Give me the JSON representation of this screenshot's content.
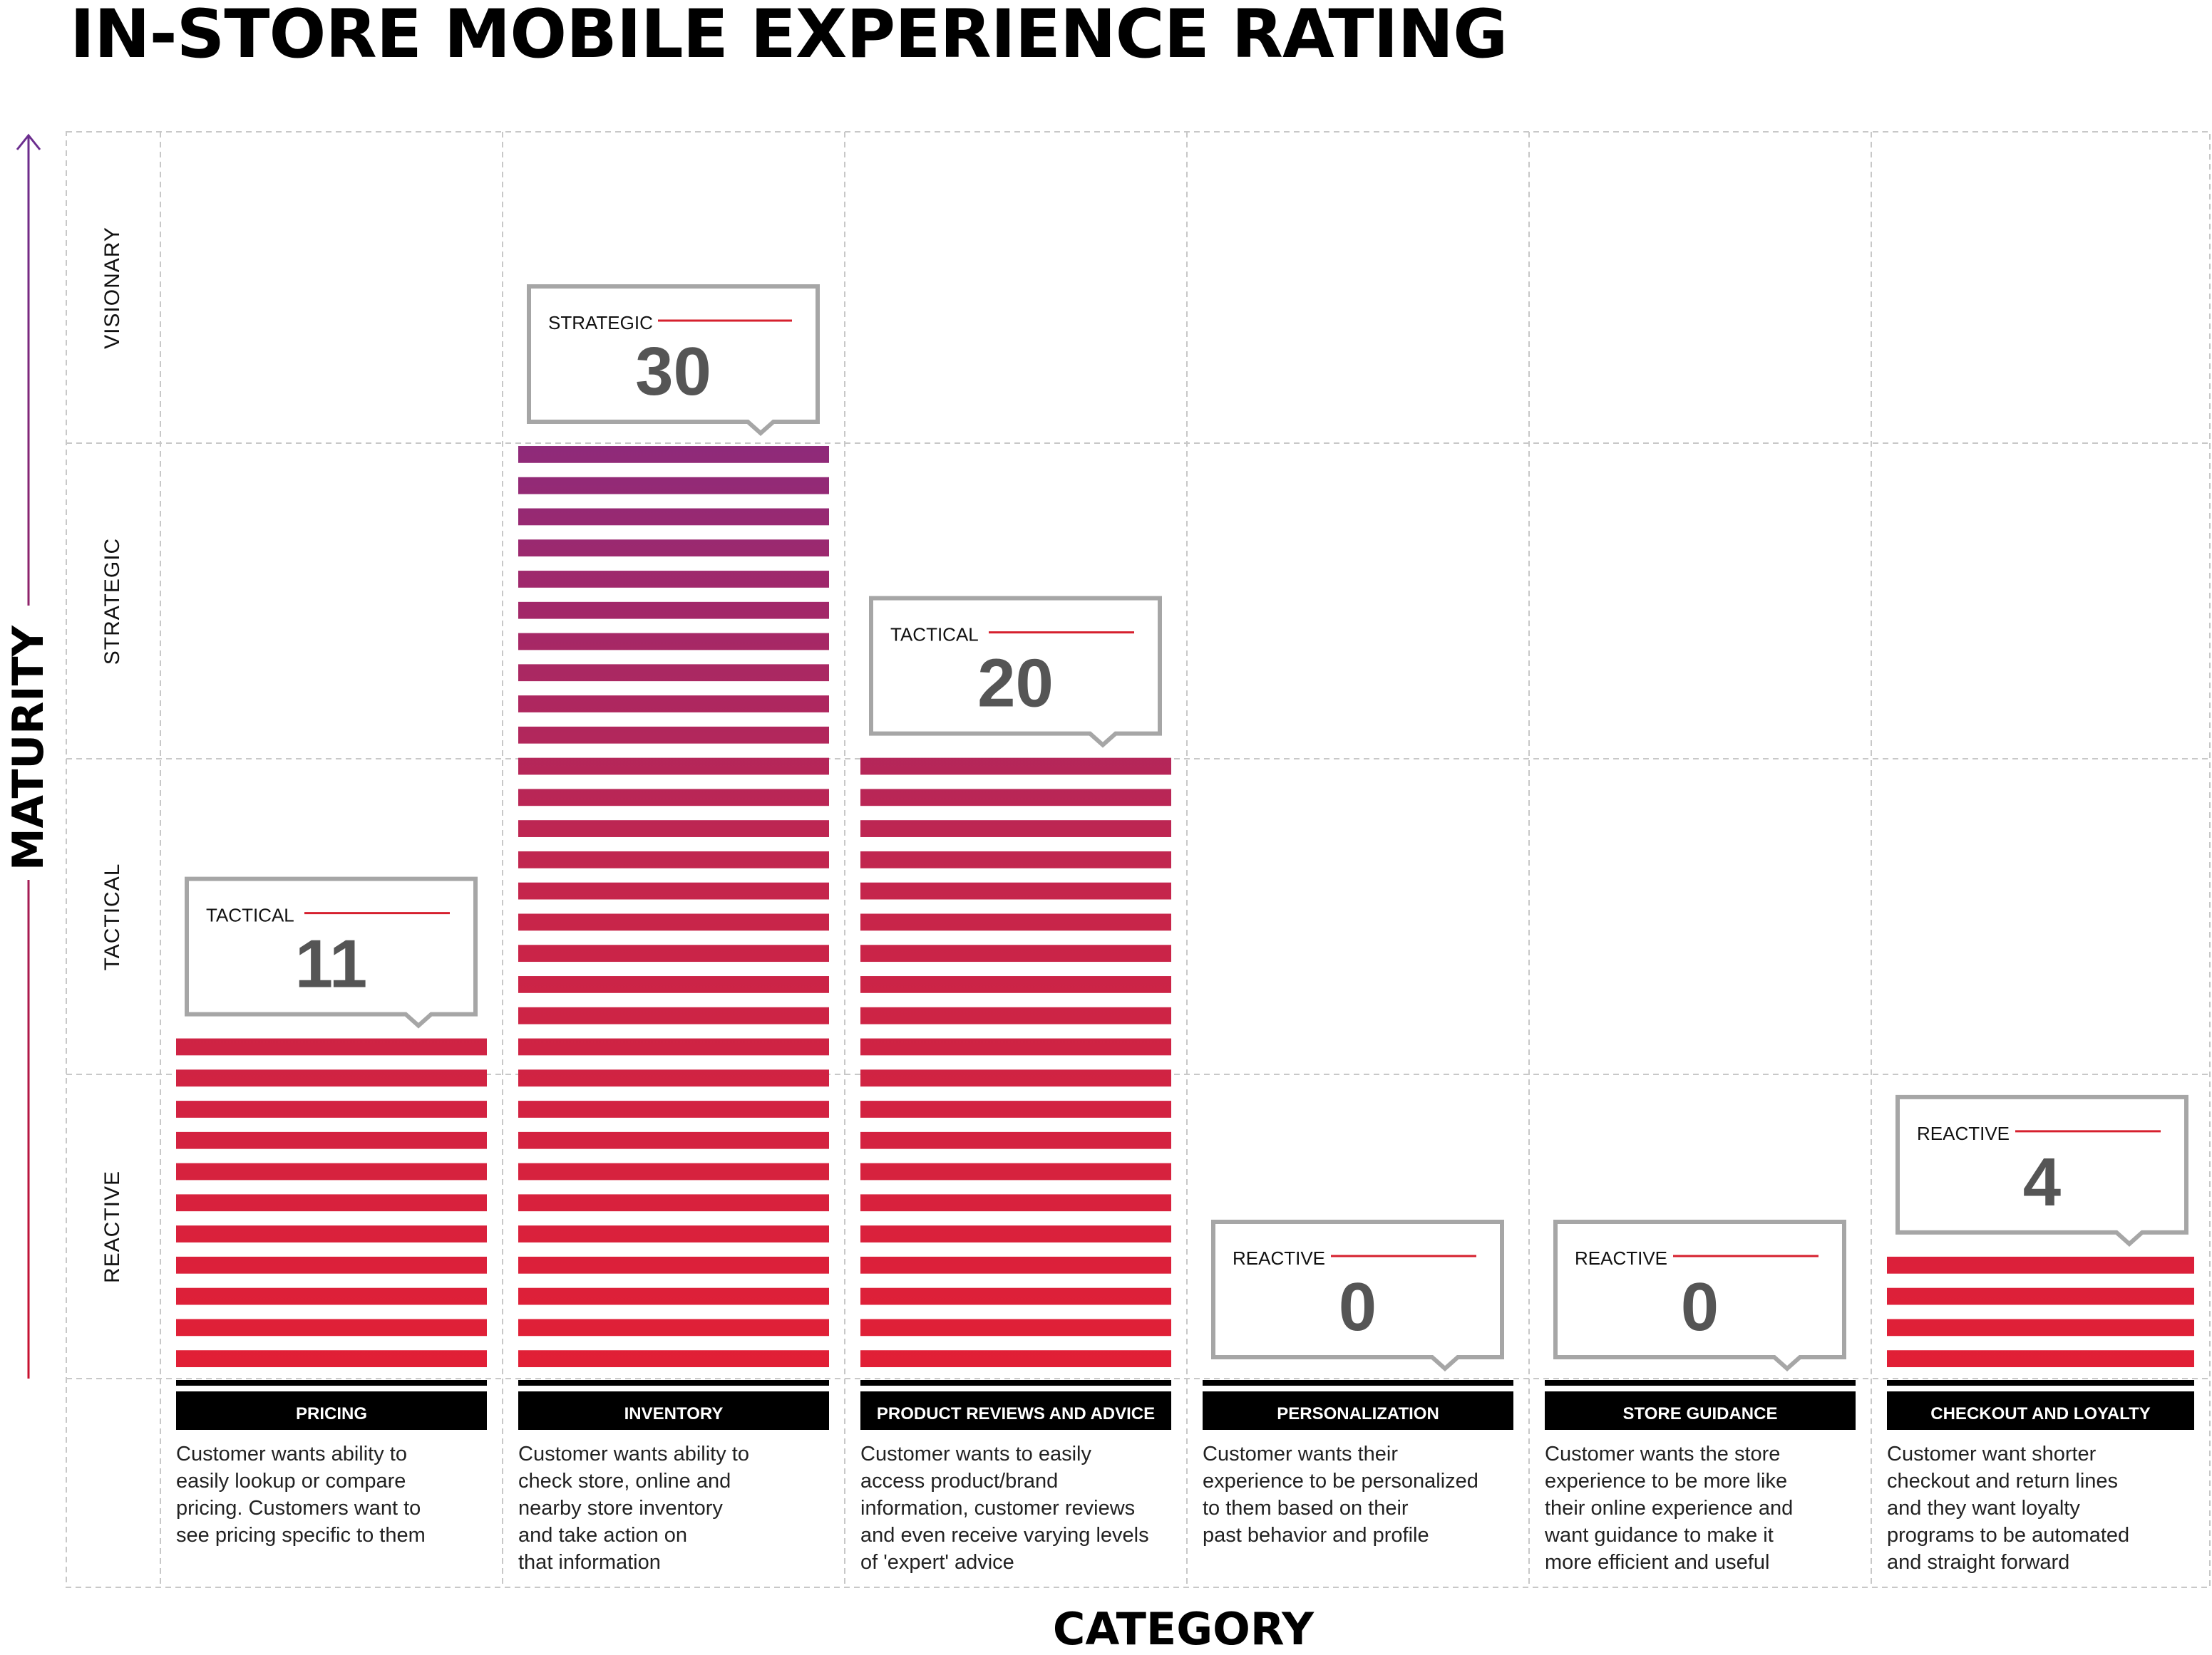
{
  "title": "IN-STORE MOBILE EXPERIENCE RATING",
  "y_axis_label": "MATURITY",
  "x_axis_label": "CATEGORY",
  "levels": [
    "REACTIVE",
    "TACTICAL",
    "STRATEGIC",
    "VISIONARY"
  ],
  "colors": {
    "reactive_red": "#e21f35",
    "strategic_purple": "#8e2a7a",
    "label_bg": "#000000",
    "callout_border": "#a6a6a6",
    "callout_line": "#d6202e",
    "value_text": "#555555",
    "axis_arrow_top": "#6b2d8e",
    "axis_arrow_bottom": "#c8102e"
  },
  "chart_data": {
    "type": "bar",
    "title": "IN-STORE MOBILE EXPERIENCE RATING",
    "xlabel": "CATEGORY",
    "ylabel": "MATURITY",
    "ylim": [
      0,
      40
    ],
    "y_bands": [
      "REACTIVE",
      "TACTICAL",
      "STRATEGIC",
      "VISIONARY"
    ],
    "grid": true,
    "categories": [
      "PRICING",
      "INVENTORY",
      "PRODUCT REVIEWS AND ADVICE",
      "PERSONALIZATION",
      "STORE GUIDANCE",
      "CHECKOUT AND LOYALTY"
    ],
    "values": [
      11,
      30,
      20,
      0,
      0,
      4
    ],
    "ratings": [
      "TACTICAL",
      "STRATEGIC",
      "TACTICAL",
      "REACTIVE",
      "REACTIVE",
      "REACTIVE"
    ],
    "descriptions": [
      "Customer wants ability to\neasily lookup or compare\npricing. Customers want to\nsee pricing specific to them",
      "Customer wants ability to\ncheck store, online and\nnearby store inventory\nand take action on\nthat information",
      "Customer wants to easily\naccess product/brand\ninformation, customer reviews\nand even receive varying levels\nof 'expert' advice",
      "Customer wants their\nexperience to be personalized\nto them based on their\npast behavior and profile",
      "Customer wants the store\nexperience to be more like\ntheir online experience and\nwant guidance to make it\nmore efficient and useful",
      "Customer want shorter\ncheckout and return lines\nand they want loyalty\nprograms to be automated\nand straight forward"
    ]
  }
}
